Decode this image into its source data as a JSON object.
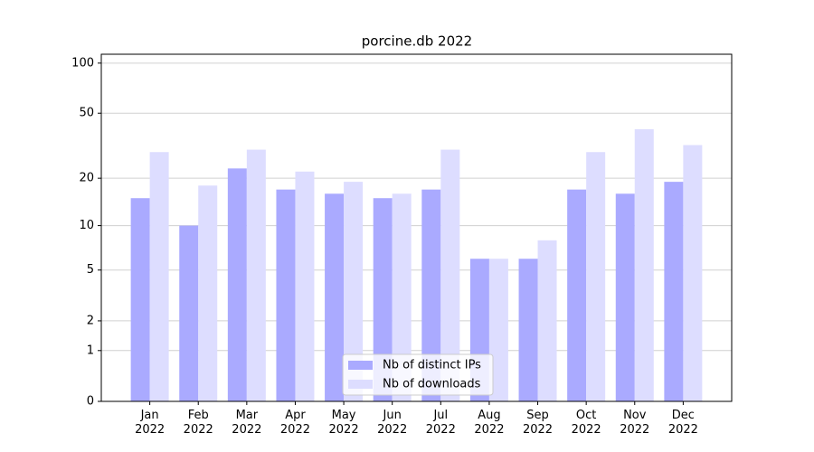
{
  "chart_data": {
    "type": "bar",
    "title": "porcine.db 2022",
    "categories": [
      "Jan\n2022",
      "Feb\n2022",
      "Mar\n2022",
      "Apr\n2022",
      "May\n2022",
      "Jun\n2022",
      "Jul\n2022",
      "Aug\n2022",
      "Sep\n2022",
      "Oct\n2022",
      "Nov\n2022",
      "Dec\n2022"
    ],
    "series": [
      {
        "name": "Nb of distinct IPs",
        "color": "#aaaaff",
        "values": [
          15,
          10,
          23,
          17,
          16,
          15,
          17,
          6,
          6,
          17,
          16,
          19
        ]
      },
      {
        "name": "Nb of downloads",
        "color": "#ddddff",
        "values": [
          29,
          18,
          30,
          22,
          19,
          16,
          30,
          6,
          8,
          29,
          40,
          32
        ]
      }
    ],
    "yscale": "log1p",
    "ylim": [
      0,
      113
    ],
    "yticks": [
      0,
      1,
      2,
      5,
      10,
      20,
      50,
      100
    ],
    "grid": true,
    "legend": "lower center"
  }
}
